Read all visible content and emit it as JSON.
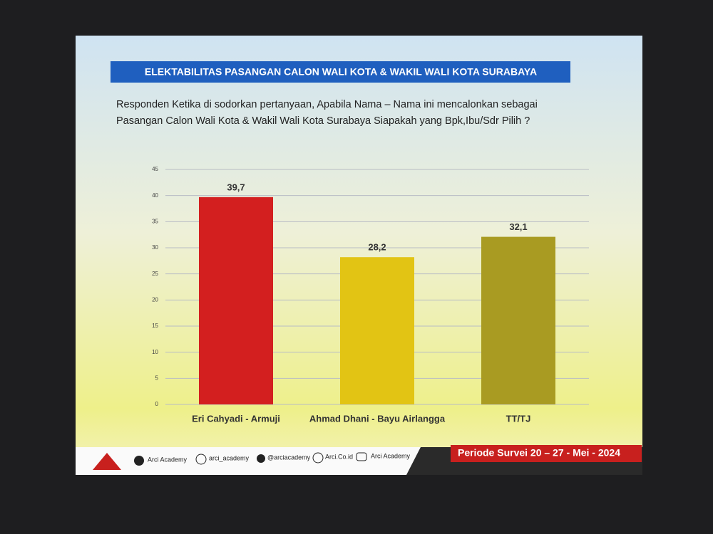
{
  "chart_data": {
    "type": "bar",
    "title": "ELEKTABILITAS PASANGAN CALON WALI KOTA & WAKIL WALI KOTA SURABAYA",
    "subtitle": [
      "Responden Ketika di sodorkan pertanyaan, Apabila Nama – Nama   ini mencalonkan sebagai",
      "Pasangan Calon Wali Kota & Wakil Wali Kota Surabaya  Siapakah yang Bpk,Ibu/Sdr Pilih ?"
    ],
    "categories": [
      "Eri Cahyadi - Armuji",
      "Ahmad Dhani - Bayu Airlangga",
      "TT/TJ"
    ],
    "values": [
      39.7,
      28.2,
      32.1
    ],
    "value_labels": [
      "39,7",
      "28,2",
      "32,1"
    ],
    "colors": [
      "#d31f1f",
      "#e2c414",
      "#a99b22"
    ],
    "ylim": [
      0,
      45
    ],
    "yticks": [
      0,
      5,
      10,
      15,
      20,
      25,
      30,
      35,
      40,
      45
    ],
    "grid": true
  },
  "footer": {
    "links": [
      "Arci Academy",
      "arci_academy",
      "@arciacademy",
      "Arci.Co.id",
      "Arci Academy"
    ],
    "period": "Periode Survei 20 – 27 -  Mei -  2024"
  }
}
